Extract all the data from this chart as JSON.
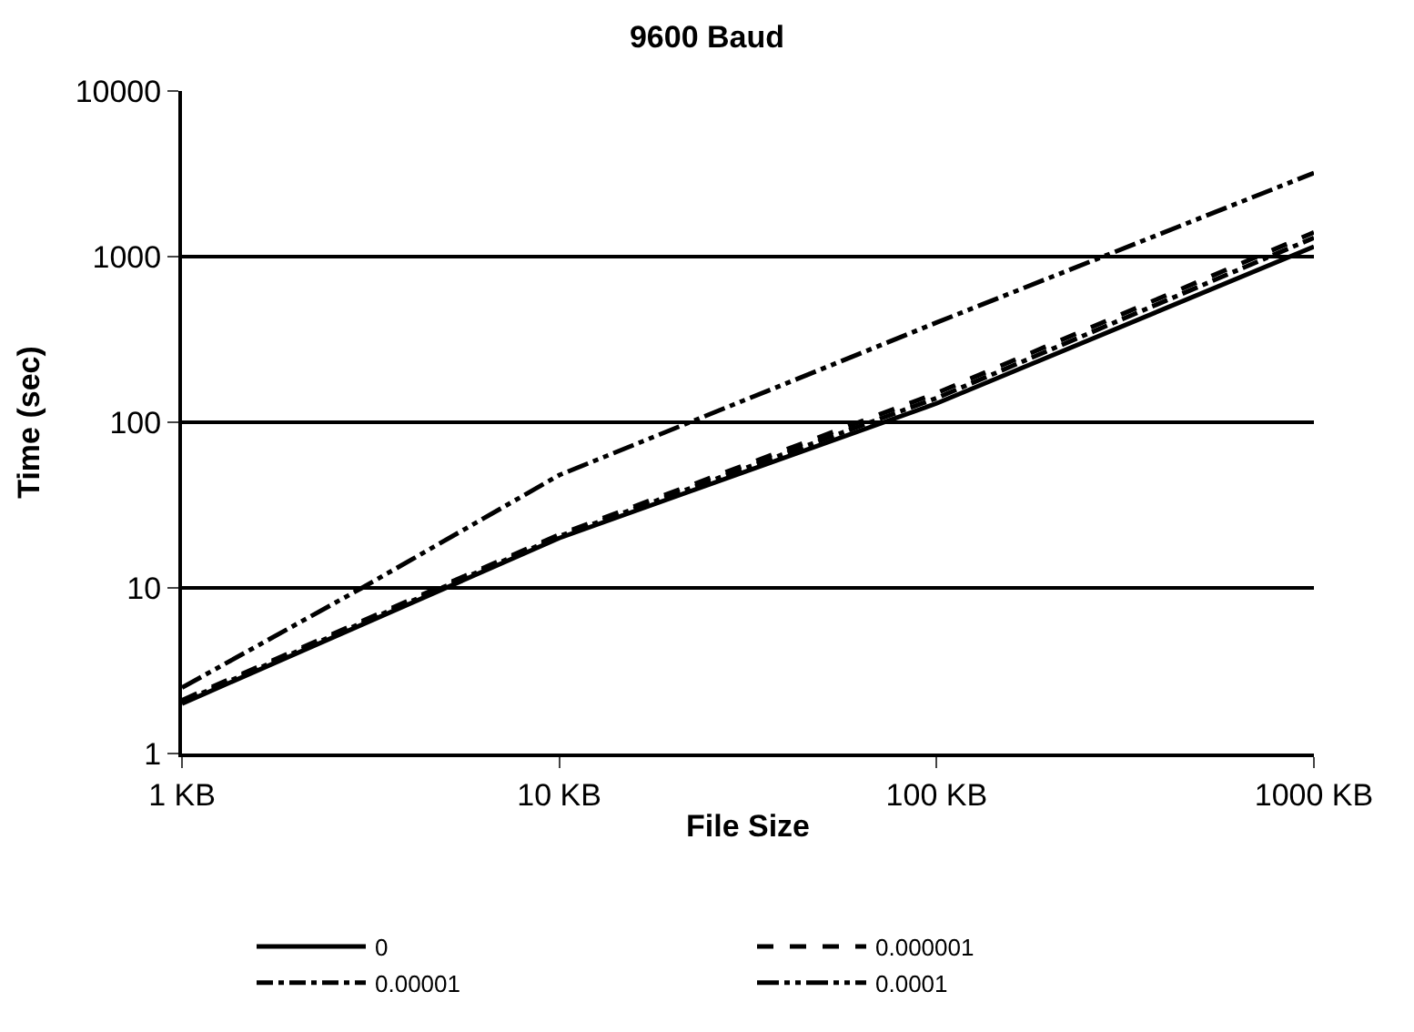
{
  "chart_data": {
    "type": "line",
    "title": "9600 Baud",
    "xlabel": "File Size",
    "ylabel": "Time (sec)",
    "log": "xy",
    "grid": "y",
    "legend": "bottom",
    "xlim": [
      1,
      1000
    ],
    "xticks": [
      {
        "value": 1,
        "label": "1 KB"
      },
      {
        "value": 10,
        "label": "10 KB"
      },
      {
        "value": 100,
        "label": "100 KB"
      },
      {
        "value": 1000,
        "label": "1000 KB"
      }
    ],
    "ylim": [
      1,
      10000
    ],
    "yticks": [
      1,
      10,
      100,
      1000,
      10000
    ],
    "series": [
      {
        "name": "0",
        "color": "#000000",
        "line_style": "solid",
        "x": [
          1,
          10,
          100,
          1000
        ],
        "values": [
          2,
          20,
          130,
          1150
        ]
      },
      {
        "name": "0.000001",
        "color": "#000000",
        "line_style": "dashed",
        "x": [
          1,
          10,
          100,
          1000
        ],
        "values": [
          2.1,
          21,
          150,
          1400
        ]
      },
      {
        "name": "0.00001",
        "color": "#000000",
        "line_style": "dashdot",
        "x": [
          1,
          10,
          100,
          1000
        ],
        "values": [
          2.05,
          20.5,
          140,
          1300
        ]
      },
      {
        "name": "0.0001",
        "color": "#000000",
        "line_style": "dashdotdot",
        "x": [
          1,
          3,
          10,
          100,
          1000
        ],
        "values": [
          2.5,
          10,
          48,
          400,
          3200
        ]
      }
    ]
  }
}
